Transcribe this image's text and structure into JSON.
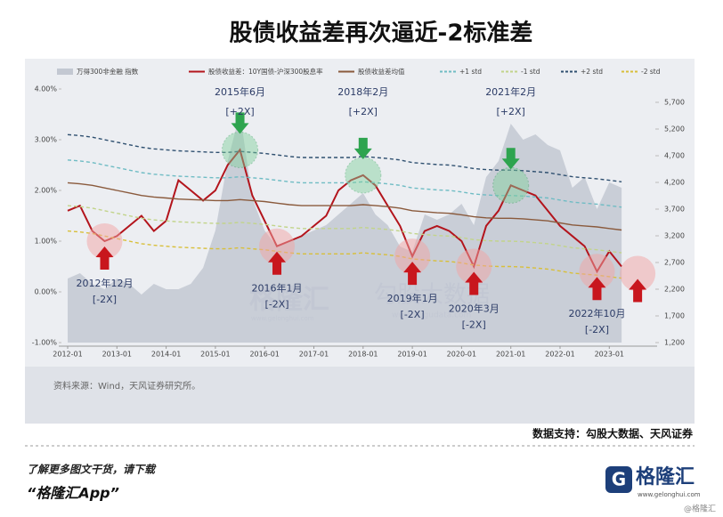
{
  "header": {
    "title": "股债收益差再次逼近-2标准差"
  },
  "chart_data": {
    "type": "line",
    "x": [
      "2012-01",
      "2012-04",
      "2012-07",
      "2012-10",
      "2013-01",
      "2013-04",
      "2013-07",
      "2013-10",
      "2014-01",
      "2014-04",
      "2014-07",
      "2014-10",
      "2015-01",
      "2015-04",
      "2015-07",
      "2015-10",
      "2016-01",
      "2016-04",
      "2016-07",
      "2016-10",
      "2017-01",
      "2017-04",
      "2017-07",
      "2017-10",
      "2018-01",
      "2018-04",
      "2018-07",
      "2018-10",
      "2019-01",
      "2019-04",
      "2019-07",
      "2019-10",
      "2020-01",
      "2020-04",
      "2020-07",
      "2020-10",
      "2021-01",
      "2021-04",
      "2021-07",
      "2021-10",
      "2022-01",
      "2022-04",
      "2022-07",
      "2022-10",
      "2023-01",
      "2023-04"
    ],
    "xticks": [
      "2012-01",
      "2013-01",
      "2014-01",
      "2015-01",
      "2016-01",
      "2017-01",
      "2018-01",
      "2019-01",
      "2020-01",
      "2021-01",
      "2022-01",
      "2023-01"
    ],
    "ylim": [
      -1,
      4
    ],
    "yticks": [
      {
        "value": 4,
        "label": "4.00%"
      },
      {
        "value": 3,
        "label": "3.00%"
      },
      {
        "value": 2,
        "label": "2.00%"
      },
      {
        "value": 1,
        "label": "1.00%"
      },
      {
        "value": 0,
        "label": "0.00%"
      },
      {
        "value": -1,
        "label": "-1.00%"
      }
    ],
    "y2lim": [
      1200,
      5950
    ],
    "y2ticks": [
      {
        "value": 5700,
        "label": "5,700"
      },
      {
        "value": 5200,
        "label": "5,200"
      },
      {
        "value": 4700,
        "label": "4,700"
      },
      {
        "value": 4200,
        "label": "4,200"
      },
      {
        "value": 3700,
        "label": "3,700"
      },
      {
        "value": 3200,
        "label": "3,200"
      },
      {
        "value": 2700,
        "label": "2,700"
      },
      {
        "value": 2200,
        "label": "2,200"
      },
      {
        "value": 1700,
        "label": "1,700"
      },
      {
        "value": 1200,
        "label": "1,200"
      }
    ],
    "series": [
      {
        "name": "万得300非金融 指数",
        "color": "#c3c8d2",
        "style": "area",
        "axis": "y2",
        "values": [
          2400,
          2500,
          2300,
          2200,
          2400,
          2300,
          2100,
          2300,
          2200,
          2200,
          2300,
          2600,
          3300,
          4600,
          5500,
          3900,
          3300,
          3000,
          3100,
          3200,
          3300,
          3400,
          3600,
          3800,
          4000,
          3600,
          3400,
          3000,
          2900,
          3600,
          3500,
          3600,
          3800,
          3400,
          4300,
          4600,
          5300,
          5000,
          5100,
          4900,
          4800,
          4100,
          4300,
          3700,
          4200,
          4100
        ]
      },
      {
        "name": "股债收益差：10Y国债-沪深300股息率",
        "color": "#b3141c",
        "style": "solid",
        "values": [
          1.6,
          1.7,
          1.2,
          1.0,
          1.1,
          1.3,
          1.5,
          1.2,
          1.4,
          2.2,
          2.0,
          1.8,
          2.0,
          2.5,
          2.8,
          1.9,
          1.4,
          0.9,
          1.0,
          1.1,
          1.3,
          1.5,
          2.0,
          2.2,
          2.3,
          2.1,
          1.7,
          1.3,
          0.7,
          1.2,
          1.3,
          1.2,
          1.0,
          0.5,
          1.3,
          1.6,
          2.1,
          2.0,
          1.9,
          1.6,
          1.3,
          1.1,
          0.9,
          0.4,
          0.8,
          0.5
        ]
      },
      {
        "name": "股债收益差均值",
        "color": "#8a5a3c",
        "style": "solid",
        "values": [
          2.15,
          2.13,
          2.1,
          2.05,
          2.0,
          1.95,
          1.9,
          1.87,
          1.85,
          1.83,
          1.82,
          1.81,
          1.8,
          1.8,
          1.82,
          1.8,
          1.78,
          1.75,
          1.72,
          1.7,
          1.7,
          1.7,
          1.7,
          1.7,
          1.72,
          1.7,
          1.68,
          1.65,
          1.6,
          1.58,
          1.56,
          1.55,
          1.52,
          1.48,
          1.46,
          1.45,
          1.45,
          1.44,
          1.42,
          1.4,
          1.36,
          1.32,
          1.3,
          1.28,
          1.25,
          1.22
        ]
      },
      {
        "name": "+1 std",
        "color": "#6fbcc4",
        "style": "dashed",
        "values": [
          2.6,
          2.58,
          2.55,
          2.5,
          2.45,
          2.4,
          2.35,
          2.32,
          2.3,
          2.28,
          2.27,
          2.26,
          2.25,
          2.25,
          2.27,
          2.25,
          2.23,
          2.2,
          2.17,
          2.15,
          2.15,
          2.15,
          2.15,
          2.15,
          2.17,
          2.15,
          2.13,
          2.1,
          2.05,
          2.03,
          2.01,
          2.0,
          1.97,
          1.93,
          1.91,
          1.9,
          1.9,
          1.89,
          1.87,
          1.85,
          1.81,
          1.77,
          1.75,
          1.73,
          1.7,
          1.67
        ]
      },
      {
        "name": "-1 std",
        "color": "#c2d48a",
        "style": "dashed",
        "values": [
          1.7,
          1.68,
          1.65,
          1.6,
          1.55,
          1.5,
          1.45,
          1.42,
          1.4,
          1.38,
          1.37,
          1.36,
          1.35,
          1.35,
          1.37,
          1.35,
          1.33,
          1.3,
          1.27,
          1.25,
          1.25,
          1.25,
          1.25,
          1.25,
          1.27,
          1.25,
          1.23,
          1.2,
          1.15,
          1.13,
          1.11,
          1.1,
          1.07,
          1.03,
          1.01,
          1.0,
          1.0,
          0.99,
          0.97,
          0.95,
          0.91,
          0.87,
          0.85,
          0.83,
          0.8,
          0.77
        ]
      },
      {
        "name": "+2 std",
        "color": "#2f5070",
        "style": "dashed",
        "values": [
          3.1,
          3.08,
          3.05,
          3.0,
          2.95,
          2.9,
          2.85,
          2.82,
          2.8,
          2.78,
          2.77,
          2.76,
          2.75,
          2.75,
          2.77,
          2.75,
          2.73,
          2.7,
          2.67,
          2.65,
          2.65,
          2.65,
          2.65,
          2.65,
          2.67,
          2.65,
          2.63,
          2.6,
          2.55,
          2.53,
          2.51,
          2.5,
          2.47,
          2.43,
          2.41,
          2.4,
          2.4,
          2.39,
          2.37,
          2.35,
          2.31,
          2.27,
          2.25,
          2.23,
          2.2,
          2.17
        ]
      },
      {
        "name": "-2 std",
        "color": "#d8bf3a",
        "style": "dashed",
        "values": [
          1.2,
          1.18,
          1.15,
          1.1,
          1.05,
          1.0,
          0.95,
          0.92,
          0.9,
          0.88,
          0.87,
          0.86,
          0.85,
          0.85,
          0.87,
          0.85,
          0.83,
          0.8,
          0.77,
          0.75,
          0.75,
          0.75,
          0.75,
          0.75,
          0.77,
          0.75,
          0.73,
          0.7,
          0.65,
          0.63,
          0.61,
          0.6,
          0.57,
          0.53,
          0.51,
          0.5,
          0.5,
          0.49,
          0.47,
          0.45,
          0.41,
          0.37,
          0.35,
          0.33,
          0.3,
          0.27
        ]
      }
    ],
    "annotations": [
      {
        "x": "2012-10",
        "label": "2012年12月",
        "tag": "[-2X]",
        "direction": "up"
      },
      {
        "x": "2015-07",
        "label": "2015年6月",
        "tag": "[+2X]",
        "direction": "down"
      },
      {
        "x": "2016-04",
        "label": "2016年1月",
        "tag": "[-2X]",
        "direction": "up"
      },
      {
        "x": "2018-01",
        "label": "2018年2月",
        "tag": "[+2X]",
        "direction": "down"
      },
      {
        "x": "2019-01",
        "label": "2019年1月",
        "tag": "[-2X]",
        "direction": "up"
      },
      {
        "x": "2020-04",
        "label": "2020年3月",
        "tag": "[-2X]",
        "direction": "up"
      },
      {
        "x": "2021-01",
        "label": "2021年2月",
        "tag": "[+2X]",
        "direction": "down"
      },
      {
        "x": "2022-10",
        "label": "2022年10月",
        "tag": "[-2X]",
        "direction": "up"
      }
    ],
    "source": "资料来源：Wind，天风证券研究所。"
  },
  "watermarks": {
    "brand": "格隆汇",
    "brand_url": "www.gelonghui.com",
    "partner": "勾股大数据",
    "partner_url": "www.gugudata.com"
  },
  "footer": {
    "data_support": "数据支持：勾股大数据、天风证券",
    "promo": "了解更多图文干货，请下载",
    "app": "“格隆汇App”",
    "logo": "格隆汇",
    "logo_url": "www.gelonghui.com",
    "corner": "@格隆汇"
  }
}
